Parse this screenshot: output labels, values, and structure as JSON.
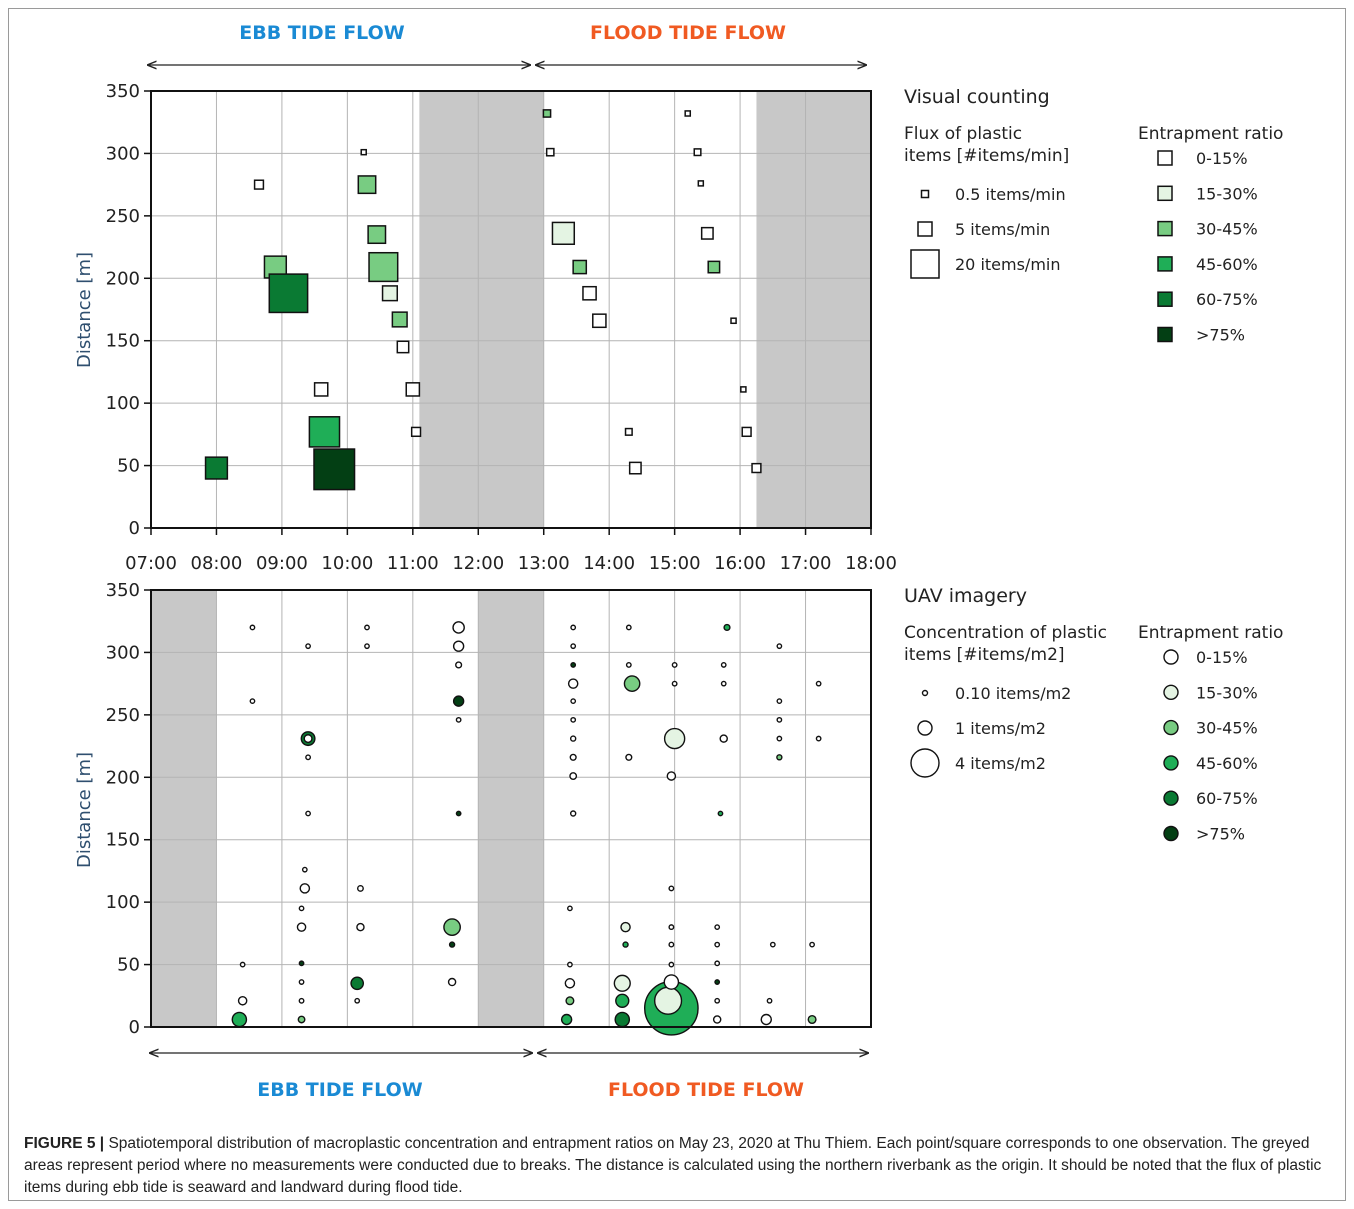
{
  "figure": {
    "caption_label": "FIGURE 5 |",
    "caption_title": " Spatiotemporal distribution of macroplastic concentration and entrapment ratios on May 23, 2020 at Thu Thiem.",
    "caption_body": " Each point/square corresponds to one observation. The greyed areas represent period where no measurements were conducted due to breaks. The distance is calculated using the northern riverbank as the origin. It should be noted that the flux of plastic items during ebb tide is seaward and landward during flood tide."
  },
  "tide_labels": {
    "ebb": "EBB TIDE FLOW",
    "flood": "FLOOD TIDE FLOW",
    "ebb_color": "#1a8ad4",
    "flood_color": "#f05a22"
  },
  "colors": {
    "grey_band": "#c8c8c8",
    "ratio_scale": [
      "#ffffff",
      "#e4f4e3",
      "#78cc82",
      "#1fae57",
      "#0a7a33",
      "#033f14"
    ]
  },
  "chart_data": [
    {
      "type": "scatter",
      "marker": "square",
      "title": "Visual counting",
      "xlabel": "",
      "ylabel": "Distance [m]",
      "xlim": [
        7,
        18
      ],
      "ylim": [
        0,
        350
      ],
      "xticks": [
        "07:00",
        "08:00",
        "09:00",
        "10:00",
        "11:00",
        "12:00",
        "13:00",
        "14:00",
        "15:00",
        "16:00",
        "17:00",
        "18:00"
      ],
      "yticks": [
        "0",
        "50",
        "100",
        "150",
        "200",
        "250",
        "300",
        "350"
      ],
      "grid": true,
      "grey_bands": [
        [
          11.1,
          13.0
        ],
        [
          16.25,
          18.0
        ]
      ],
      "size_legend_title": "Flux of plastic items [#items/min]",
      "size_legend": [
        {
          "label": "0.5 items/min",
          "value": 0.5
        },
        {
          "label": "5 items/min",
          "value": 5
        },
        {
          "label": "20 items/min",
          "value": 20
        }
      ],
      "color_legend_title": "Entrapment ratio",
      "color_legend": [
        "0-15%",
        "15-30%",
        "30-45%",
        "45-60%",
        "60-75%",
        ">75%"
      ],
      "points": [
        {
          "x": 8.0,
          "y": 48,
          "flux": 5.5,
          "ratio": 4
        },
        {
          "x": 8.65,
          "y": 275,
          "flux": 0.9,
          "ratio": 0
        },
        {
          "x": 8.9,
          "y": 209,
          "flux": 5.5,
          "ratio": 2
        },
        {
          "x": 9.1,
          "y": 188,
          "flux": 17,
          "ratio": 4
        },
        {
          "x": 9.6,
          "y": 111,
          "flux": 2.0,
          "ratio": 0
        },
        {
          "x": 9.65,
          "y": 77,
          "flux": 10.5,
          "ratio": 3
        },
        {
          "x": 9.8,
          "y": 47,
          "flux": 19,
          "ratio": 5
        },
        {
          "x": 10.25,
          "y": 301,
          "flux": 0.15,
          "ratio": 0
        },
        {
          "x": 10.3,
          "y": 275,
          "flux": 3.5,
          "ratio": 2
        },
        {
          "x": 10.45,
          "y": 235,
          "flux": 3.5,
          "ratio": 2
        },
        {
          "x": 10.55,
          "y": 209,
          "flux": 9.5,
          "ratio": 2
        },
        {
          "x": 10.65,
          "y": 188,
          "flux": 2.5,
          "ratio": 1
        },
        {
          "x": 10.8,
          "y": 167,
          "flux": 2.5,
          "ratio": 2
        },
        {
          "x": 10.85,
          "y": 145,
          "flux": 1.5,
          "ratio": 0
        },
        {
          "x": 11.0,
          "y": 111,
          "flux": 2.0,
          "ratio": 0
        },
        {
          "x": 11.05,
          "y": 77,
          "flux": 0.9,
          "ratio": 0
        },
        {
          "x": 13.05,
          "y": 332,
          "flux": 0.6,
          "ratio": 2
        },
        {
          "x": 13.1,
          "y": 301,
          "flux": 0.6,
          "ratio": 0
        },
        {
          "x": 13.3,
          "y": 236,
          "flux": 5.5,
          "ratio": 1
        },
        {
          "x": 13.55,
          "y": 209,
          "flux": 2.0,
          "ratio": 2
        },
        {
          "x": 13.7,
          "y": 188,
          "flux": 2.0,
          "ratio": 0
        },
        {
          "x": 13.85,
          "y": 166,
          "flux": 2.0,
          "ratio": 0
        },
        {
          "x": 14.3,
          "y": 77,
          "flux": 0.5,
          "ratio": 0
        },
        {
          "x": 14.4,
          "y": 48,
          "flux": 1.5,
          "ratio": 0
        },
        {
          "x": 15.2,
          "y": 332,
          "flux": 0.3,
          "ratio": 0
        },
        {
          "x": 15.35,
          "y": 301,
          "flux": 0.5,
          "ratio": 0
        },
        {
          "x": 15.4,
          "y": 276,
          "flux": 0.15,
          "ratio": 0
        },
        {
          "x": 15.5,
          "y": 236,
          "flux": 1.5,
          "ratio": 0
        },
        {
          "x": 15.6,
          "y": 209,
          "flux": 1.5,
          "ratio": 2
        },
        {
          "x": 15.9,
          "y": 166,
          "flux": 0.3,
          "ratio": 0
        },
        {
          "x": 16.05,
          "y": 111,
          "flux": 0.3,
          "ratio": 0
        },
        {
          "x": 16.1,
          "y": 77,
          "flux": 0.9,
          "ratio": 0
        },
        {
          "x": 16.25,
          "y": 48,
          "flux": 0.9,
          "ratio": 0
        }
      ]
    },
    {
      "type": "scatter",
      "marker": "circle",
      "title": "UAV imagery",
      "xlabel": "",
      "ylabel": "Distance [m]",
      "xlim": [
        7,
        18
      ],
      "ylim": [
        0,
        350
      ],
      "yticks": [
        "0",
        "50",
        "100",
        "150",
        "200",
        "250",
        "300",
        "350"
      ],
      "grid": true,
      "grey_bands": [
        [
          7.0,
          8.0
        ],
        [
          12.0,
          13.0
        ]
      ],
      "size_legend_title": "Concentration of plastic items [#items/m2]",
      "size_legend": [
        {
          "label": "0.10 items/m2",
          "value": 0.1
        },
        {
          "label": "1 items/m2",
          "value": 1
        },
        {
          "label": "4 items/m2",
          "value": 4
        }
      ],
      "color_legend_title": "Entrapment ratio",
      "color_legend": [
        "0-15%",
        "15-30%",
        "30-45%",
        "45-60%",
        "60-75%",
        ">75%"
      ],
      "points": [
        {
          "x": 8.55,
          "y": 320,
          "c": 0.1,
          "ratio": 0
        },
        {
          "x": 8.55,
          "y": 261,
          "c": 0.06,
          "ratio": 0
        },
        {
          "x": 8.4,
          "y": 50,
          "c": 0.05,
          "ratio": 0
        },
        {
          "x": 8.4,
          "y": 21,
          "c": 0.4,
          "ratio": 0
        },
        {
          "x": 8.35,
          "y": 6,
          "c": 1.2,
          "ratio": 3
        },
        {
          "x": 9.4,
          "y": 305,
          "c": 0.06,
          "ratio": 0
        },
        {
          "x": 9.4,
          "y": 231,
          "c": 1.1,
          "ratio": 4
        },
        {
          "x": 9.4,
          "y": 231,
          "c": 0.35,
          "ratio": 0
        },
        {
          "x": 9.4,
          "y": 216,
          "c": 0.12,
          "ratio": 0
        },
        {
          "x": 9.4,
          "y": 171,
          "c": 0.06,
          "ratio": 0
        },
        {
          "x": 9.35,
          "y": 126,
          "c": 0.06,
          "ratio": 0
        },
        {
          "x": 9.35,
          "y": 111,
          "c": 0.5,
          "ratio": 0
        },
        {
          "x": 9.3,
          "y": 95,
          "c": 0.06,
          "ratio": 0
        },
        {
          "x": 9.3,
          "y": 80,
          "c": 0.4,
          "ratio": 0
        },
        {
          "x": 9.3,
          "y": 51,
          "c": 0.06,
          "ratio": 5
        },
        {
          "x": 9.3,
          "y": 36,
          "c": 0.08,
          "ratio": 0
        },
        {
          "x": 9.3,
          "y": 21,
          "c": 0.12,
          "ratio": 0
        },
        {
          "x": 9.3,
          "y": 6,
          "c": 0.25,
          "ratio": 2
        },
        {
          "x": 10.3,
          "y": 320,
          "c": 0.08,
          "ratio": 0
        },
        {
          "x": 10.3,
          "y": 305,
          "c": 0.08,
          "ratio": 0
        },
        {
          "x": 10.2,
          "y": 111,
          "c": 0.18,
          "ratio": 0
        },
        {
          "x": 10.2,
          "y": 80,
          "c": 0.3,
          "ratio": 0
        },
        {
          "x": 10.15,
          "y": 35,
          "c": 0.9,
          "ratio": 4
        },
        {
          "x": 10.15,
          "y": 21,
          "c": 0.06,
          "ratio": 0
        },
        {
          "x": 11.7,
          "y": 320,
          "c": 0.75,
          "ratio": 0
        },
        {
          "x": 11.7,
          "y": 305,
          "c": 0.6,
          "ratio": 0
        },
        {
          "x": 11.7,
          "y": 290,
          "c": 0.2,
          "ratio": 0
        },
        {
          "x": 11.7,
          "y": 261,
          "c": 0.6,
          "ratio": 5
        },
        {
          "x": 11.7,
          "y": 246,
          "c": 0.08,
          "ratio": 0
        },
        {
          "x": 11.7,
          "y": 171,
          "c": 0.08,
          "ratio": 5
        },
        {
          "x": 11.6,
          "y": 80,
          "c": 1.6,
          "ratio": 2
        },
        {
          "x": 11.6,
          "y": 66,
          "c": 0.15,
          "ratio": 5
        },
        {
          "x": 11.6,
          "y": 36,
          "c": 0.3,
          "ratio": 0
        },
        {
          "x": 13.45,
          "y": 320,
          "c": 0.1,
          "ratio": 0
        },
        {
          "x": 13.45,
          "y": 305,
          "c": 0.08,
          "ratio": 0
        },
        {
          "x": 13.45,
          "y": 290,
          "c": 0.06,
          "ratio": 5
        },
        {
          "x": 13.45,
          "y": 275,
          "c": 0.5,
          "ratio": 0
        },
        {
          "x": 13.45,
          "y": 261,
          "c": 0.08,
          "ratio": 0
        },
        {
          "x": 13.45,
          "y": 246,
          "c": 0.08,
          "ratio": 0
        },
        {
          "x": 13.45,
          "y": 231,
          "c": 0.15,
          "ratio": 0
        },
        {
          "x": 13.45,
          "y": 216,
          "c": 0.2,
          "ratio": 0
        },
        {
          "x": 13.45,
          "y": 201,
          "c": 0.25,
          "ratio": 0
        },
        {
          "x": 13.45,
          "y": 171,
          "c": 0.15,
          "ratio": 0
        },
        {
          "x": 13.4,
          "y": 95,
          "c": 0.06,
          "ratio": 0
        },
        {
          "x": 13.4,
          "y": 50,
          "c": 0.06,
          "ratio": 0
        },
        {
          "x": 13.4,
          "y": 35,
          "c": 0.5,
          "ratio": 0
        },
        {
          "x": 13.4,
          "y": 21,
          "c": 0.35,
          "ratio": 2
        },
        {
          "x": 13.35,
          "y": 6,
          "c": 0.6,
          "ratio": 3
        },
        {
          "x": 14.3,
          "y": 320,
          "c": 0.08,
          "ratio": 0
        },
        {
          "x": 14.3,
          "y": 290,
          "c": 0.12,
          "ratio": 0
        },
        {
          "x": 14.35,
          "y": 275,
          "c": 1.4,
          "ratio": 2
        },
        {
          "x": 14.3,
          "y": 216,
          "c": 0.2,
          "ratio": 0
        },
        {
          "x": 14.25,
          "y": 80,
          "c": 0.5,
          "ratio": 1
        },
        {
          "x": 14.25,
          "y": 66,
          "c": 0.15,
          "ratio": 3
        },
        {
          "x": 14.2,
          "y": 35,
          "c": 1.5,
          "ratio": 1
        },
        {
          "x": 14.2,
          "y": 21,
          "c": 1.0,
          "ratio": 3
        },
        {
          "x": 14.2,
          "y": 6,
          "c": 1.2,
          "ratio": 4
        },
        {
          "x": 15.0,
          "y": 290,
          "c": 0.12,
          "ratio": 0
        },
        {
          "x": 15.0,
          "y": 275,
          "c": 0.12,
          "ratio": 0
        },
        {
          "x": 15.0,
          "y": 231,
          "c": 2.4,
          "ratio": 1
        },
        {
          "x": 14.95,
          "y": 201,
          "c": 0.4,
          "ratio": 0
        },
        {
          "x": 14.95,
          "y": 111,
          "c": 0.12,
          "ratio": 0
        },
        {
          "x": 14.95,
          "y": 80,
          "c": 0.12,
          "ratio": 0
        },
        {
          "x": 14.95,
          "y": 66,
          "c": 0.12,
          "ratio": 0
        },
        {
          "x": 14.95,
          "y": 50,
          "c": 0.1,
          "ratio": 0
        },
        {
          "x": 14.95,
          "y": 36,
          "c": 1.2,
          "ratio": 0
        },
        {
          "x": 14.95,
          "y": 15,
          "c": 17,
          "ratio": 3
        },
        {
          "x": 14.9,
          "y": 21,
          "c": 4.3,
          "ratio": 1
        },
        {
          "x": 15.8,
          "y": 320,
          "c": 0.2,
          "ratio": 3
        },
        {
          "x": 15.75,
          "y": 290,
          "c": 0.05,
          "ratio": 0
        },
        {
          "x": 15.75,
          "y": 275,
          "c": 0.08,
          "ratio": 0
        },
        {
          "x": 15.75,
          "y": 231,
          "c": 0.3,
          "ratio": 0
        },
        {
          "x": 15.7,
          "y": 171,
          "c": 0.06,
          "ratio": 3
        },
        {
          "x": 15.65,
          "y": 80,
          "c": 0.05,
          "ratio": 0
        },
        {
          "x": 15.65,
          "y": 66,
          "c": 0.05,
          "ratio": 0
        },
        {
          "x": 15.65,
          "y": 51,
          "c": 0.05,
          "ratio": 0
        },
        {
          "x": 15.65,
          "y": 36,
          "c": 0.05,
          "ratio": 5
        },
        {
          "x": 15.65,
          "y": 21,
          "c": 0.05,
          "ratio": 0
        },
        {
          "x": 15.65,
          "y": 6,
          "c": 0.3,
          "ratio": 0
        },
        {
          "x": 16.6,
          "y": 305,
          "c": 0.06,
          "ratio": 0
        },
        {
          "x": 16.6,
          "y": 261,
          "c": 0.05,
          "ratio": 0
        },
        {
          "x": 16.6,
          "y": 246,
          "c": 0.08,
          "ratio": 0
        },
        {
          "x": 16.6,
          "y": 231,
          "c": 0.05,
          "ratio": 0
        },
        {
          "x": 16.6,
          "y": 216,
          "c": 0.15,
          "ratio": 2
        },
        {
          "x": 16.5,
          "y": 66,
          "c": 0.05,
          "ratio": 0
        },
        {
          "x": 16.45,
          "y": 21,
          "c": 0.06,
          "ratio": 0
        },
        {
          "x": 16.4,
          "y": 6,
          "c": 0.6,
          "ratio": 0
        },
        {
          "x": 17.2,
          "y": 275,
          "c": 0.06,
          "ratio": 0
        },
        {
          "x": 17.2,
          "y": 231,
          "c": 0.08,
          "ratio": 0
        },
        {
          "x": 17.1,
          "y": 66,
          "c": 0.05,
          "ratio": 0
        },
        {
          "x": 17.1,
          "y": 6,
          "c": 0.35,
          "ratio": 2
        }
      ]
    }
  ]
}
